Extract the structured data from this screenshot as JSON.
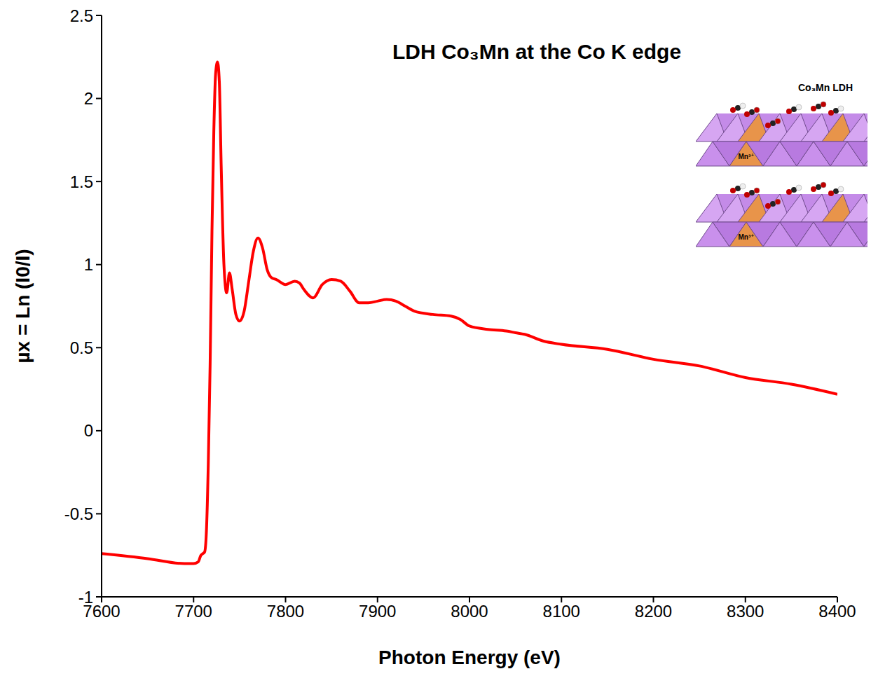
{
  "chart_data": {
    "type": "line",
    "title": "LDH Co₃Mn at the Co K edge",
    "x_label": "Photon Energy (eV)",
    "y_label": "µx = Ln (I0/I)",
    "x": [
      7600,
      7650,
      7690,
      7700,
      7705,
      7708,
      7710,
      7712,
      7714,
      7716,
      7718,
      7720,
      7722,
      7724,
      7726,
      7728,
      7730,
      7733,
      7736,
      7739,
      7742,
      7746,
      7750,
      7755,
      7760,
      7765,
      7770,
      7775,
      7780,
      7785,
      7790,
      7800,
      7810,
      7815,
      7820,
      7830,
      7840,
      7850,
      7860,
      7870,
      7880,
      7890,
      7900,
      7910,
      7920,
      7930,
      7940,
      7960,
      7980,
      7990,
      8000,
      8020,
      8040,
      8050,
      8060,
      8080,
      8100,
      8150,
      8200,
      8250,
      8300,
      8350,
      8400
    ],
    "values": [
      -0.74,
      -0.77,
      -0.8,
      -0.8,
      -0.79,
      -0.75,
      -0.74,
      -0.73,
      -0.6,
      -0.2,
      0.4,
      1.2,
      1.8,
      2.15,
      2.22,
      2.1,
      1.6,
      1.0,
      0.83,
      0.95,
      0.85,
      0.7,
      0.66,
      0.72,
      0.9,
      1.08,
      1.16,
      1.1,
      0.97,
      0.92,
      0.91,
      0.88,
      0.9,
      0.89,
      0.85,
      0.8,
      0.88,
      0.91,
      0.9,
      0.84,
      0.77,
      0.77,
      0.78,
      0.79,
      0.78,
      0.75,
      0.72,
      0.7,
      0.69,
      0.67,
      0.63,
      0.61,
      0.6,
      0.59,
      0.58,
      0.54,
      0.52,
      0.49,
      0.43,
      0.39,
      0.32,
      0.28,
      0.22
    ],
    "color": "#ff0000",
    "xlim": [
      7600,
      8400
    ],
    "xticks": [
      7600,
      7700,
      7800,
      7900,
      8000,
      8100,
      8200,
      8300,
      8400
    ],
    "ylim": [
      -1,
      2.5
    ],
    "yticks": [
      -1,
      -0.5,
      0,
      0.5,
      1,
      1.5,
      2,
      2.5
    ],
    "grid": false,
    "inset": {
      "title": "Co₃Mn LDH",
      "labels": [
        "Mn³⁺",
        "Mn³⁺"
      ]
    }
  }
}
